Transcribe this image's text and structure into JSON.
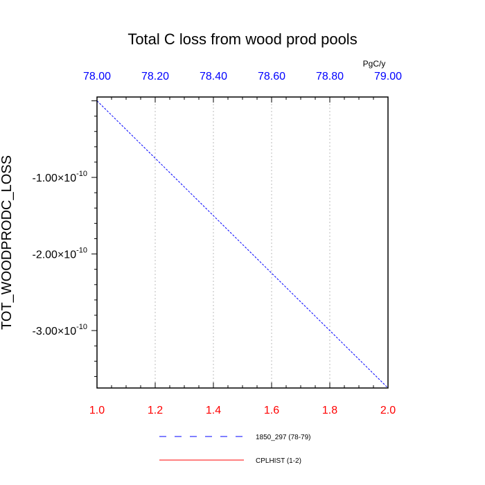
{
  "chart_data": {
    "type": "line",
    "title": "Total C loss from wood prod pools",
    "units": "PgC/y",
    "ylabel": "TOT_WOODPRODC_LOSS",
    "xlim_bottom": [
      1.0,
      2.0
    ],
    "xticks_bottom": [
      "1.0",
      "1.2",
      "1.4",
      "1.6",
      "1.8",
      "2.0"
    ],
    "xticks_bottom_values": [
      1.0,
      1.2,
      1.4,
      1.6,
      1.8,
      2.0
    ],
    "xlim_top": [
      78.0,
      79.0
    ],
    "xticks_top": [
      "78.00",
      "78.20",
      "78.40",
      "78.60",
      "78.80",
      "79.00"
    ],
    "xticks_top_values": [
      78.0,
      78.2,
      78.4,
      78.6,
      78.8,
      79.0
    ],
    "ylim": [
      -3.75e-10,
      5e-12
    ],
    "yticks": [
      {
        "value": -1e-10,
        "mantissa": "-1.00",
        "times": "×",
        "base": "10",
        "exp": "-10"
      },
      {
        "value": -2e-10,
        "mantissa": "-2.00",
        "times": "×",
        "base": "10",
        "exp": "-10"
      },
      {
        "value": -3e-10,
        "mantissa": "-3.00",
        "times": "×",
        "base": "10",
        "exp": "-10"
      }
    ],
    "grid": "vertical dotted",
    "series": [
      {
        "name": "1850_297 (78-79)",
        "color": "#0000ff",
        "style": "dashed",
        "axis": "top",
        "x": [
          78.0,
          79.0
        ],
        "y": [
          0.0,
          -3.75e-10
        ]
      },
      {
        "name": "CPLHIST (1-2)",
        "color": "#ff0000",
        "style": "solid",
        "axis": "bottom",
        "x": [],
        "y": []
      }
    ]
  }
}
